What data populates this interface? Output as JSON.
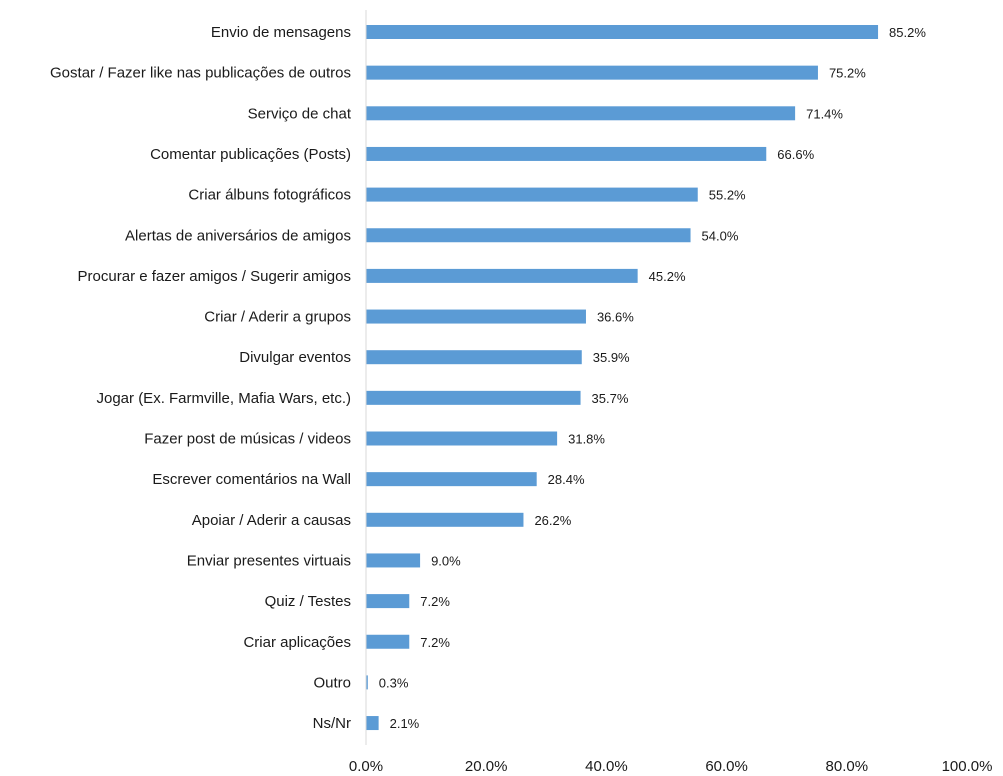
{
  "chart_data": {
    "type": "bar",
    "orientation": "horizontal",
    "title": "",
    "xlabel": "",
    "ylabel": "",
    "categories": [
      "Envio de mensagens",
      "Gostar / Fazer like nas publicações de outros",
      "Serviço de chat",
      "Comentar publicações (Posts)",
      "Criar álbuns fotográficos",
      "Alertas de aniversários de amigos",
      "Procurar e fazer amigos / Sugerir amigos",
      "Criar / Aderir a grupos",
      "Divulgar eventos",
      "Jogar (Ex. Farmville, Mafia Wars, etc.)",
      "Fazer post de músicas / videos",
      "Escrever comentários na Wall",
      "Apoiar / Aderir a causas",
      "Enviar presentes virtuais",
      "Quiz / Testes",
      "Criar aplicações",
      "Outro",
      "Ns/Nr"
    ],
    "values": [
      85.2,
      75.2,
      71.4,
      66.6,
      55.2,
      54.0,
      45.2,
      36.6,
      35.9,
      35.7,
      31.8,
      28.4,
      26.2,
      9.0,
      7.2,
      7.2,
      0.3,
      2.1
    ],
    "value_labels": [
      "85.2%",
      "75.2%",
      "71.4%",
      "66.6%",
      "55.2%",
      "54.0%",
      "45.2%",
      "36.6%",
      "35.9%",
      "35.7%",
      "31.8%",
      "28.4%",
      "26.2%",
      "9.0%",
      "7.2%",
      "7.2%",
      "0.3%",
      "2.1%"
    ],
    "xlim": [
      0,
      100
    ],
    "x_ticks": [
      "0.0%",
      "20.0%",
      "40.0%",
      "60.0%",
      "80.0%",
      "100.0%"
    ],
    "grid": false,
    "legend": "none",
    "bar_color": "#5b9bd5",
    "axis_color": "#d9d9d9"
  }
}
